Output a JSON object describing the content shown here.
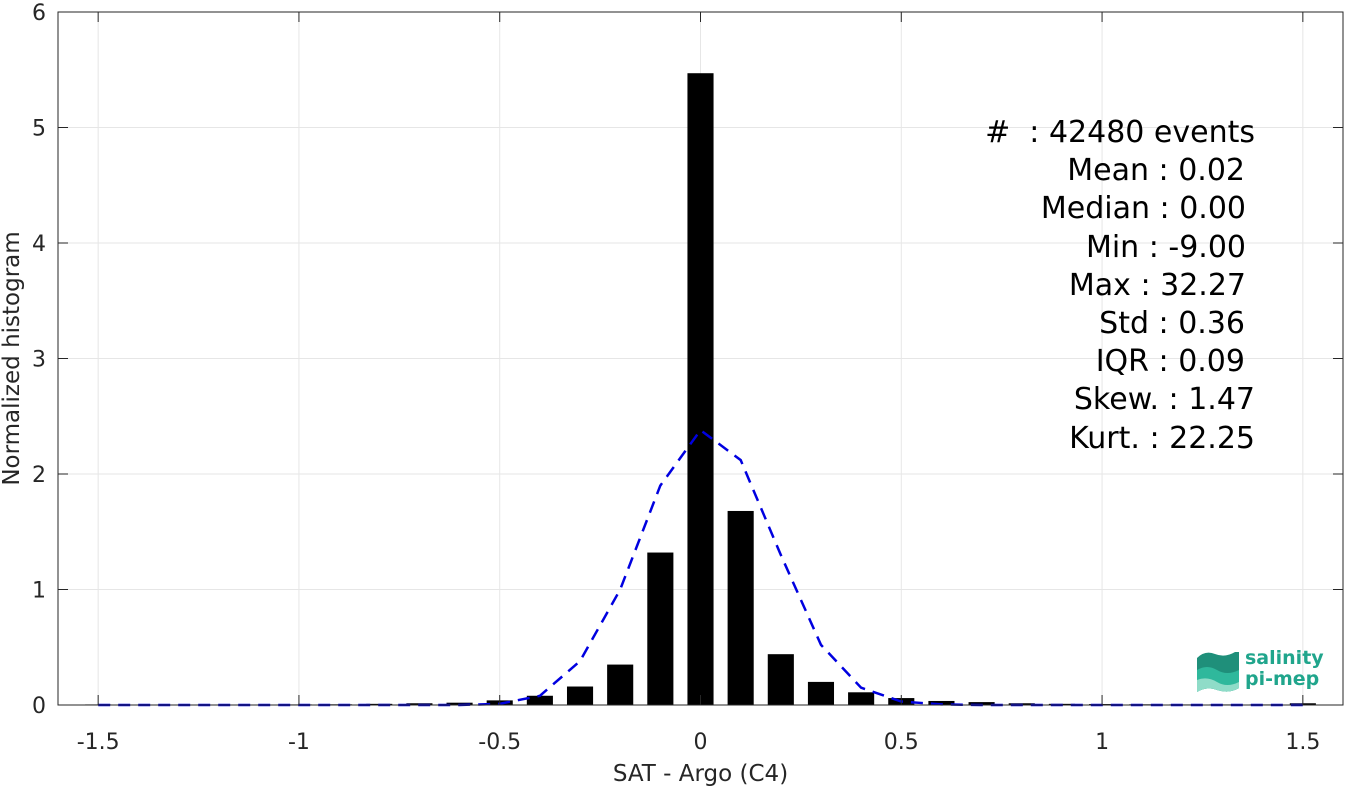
{
  "chart_data": {
    "type": "bar",
    "xlabel": "SAT - Argo (C4)",
    "ylabel": "Normalized histogram",
    "xlim": [
      -1.6,
      1.6
    ],
    "ylim": [
      0,
      6
    ],
    "xticks": [
      -1.5,
      -1,
      -0.5,
      0,
      0.5,
      1,
      1.5
    ],
    "xtick_labels": [
      "-1.5",
      "-1",
      "-0.5",
      "0",
      "0.5",
      "1",
      "1.5"
    ],
    "yticks": [
      0,
      1,
      2,
      3,
      4,
      5,
      6
    ],
    "ytick_labels": [
      "0",
      "1",
      "2",
      "3",
      "4",
      "5",
      "6"
    ],
    "grid": true,
    "bar_color": "#000000",
    "bar_width": 0.065,
    "bars": {
      "x": [
        -1.5,
        -1.4,
        -1.3,
        -1.2,
        -1.1,
        -1.0,
        -0.9,
        -0.8,
        -0.7,
        -0.6,
        -0.5,
        -0.4,
        -0.3,
        -0.2,
        -0.1,
        0.0,
        0.1,
        0.2,
        0.3,
        0.4,
        0.5,
        0.6,
        0.7,
        0.8,
        0.9,
        1.0,
        1.1,
        1.2,
        1.3,
        1.4,
        1.5
      ],
      "values": [
        0.005,
        0.004,
        0.004,
        0.004,
        0.004,
        0.005,
        0.006,
        0.01,
        0.015,
        0.02,
        0.04,
        0.08,
        0.16,
        0.35,
        1.32,
        5.47,
        1.68,
        0.44,
        0.2,
        0.11,
        0.06,
        0.035,
        0.025,
        0.015,
        0.01,
        0.008,
        0.006,
        0.005,
        0.005,
        0.005,
        0.015
      ]
    },
    "fit_curve": {
      "color": "#0000e0",
      "style": "dashed",
      "x": [
        -1.5,
        -1.4,
        -1.3,
        -1.2,
        -1.1,
        -1.0,
        -0.9,
        -0.8,
        -0.7,
        -0.6,
        -0.5,
        -0.4,
        -0.3,
        -0.2,
        -0.1,
        0.0,
        0.1,
        0.2,
        0.3,
        0.4,
        0.5,
        0.6,
        0.7,
        0.8,
        0.9,
        1.0,
        1.1,
        1.2,
        1.3,
        1.4,
        1.5
      ],
      "y": [
        0,
        0,
        0,
        0,
        0,
        0,
        0,
        0,
        0,
        0,
        0.01,
        0.08,
        0.38,
        1.0,
        1.9,
        2.38,
        2.12,
        1.3,
        0.52,
        0.15,
        0.03,
        0.005,
        0,
        0,
        0,
        0,
        0,
        0,
        0,
        0,
        0
      ]
    },
    "annotations": [
      "#  : 42480 events",
      "Mean : 0.02",
      "Median : 0.00",
      "Min : -9.00",
      "Max : 32.27",
      "Std : 0.36",
      "IQR : 0.09",
      "Skew. : 1.47",
      "Kurt. : 22.25"
    ]
  },
  "logo": {
    "line1": "salinity",
    "line2": "pi-mep",
    "color": "#20a58c"
  }
}
